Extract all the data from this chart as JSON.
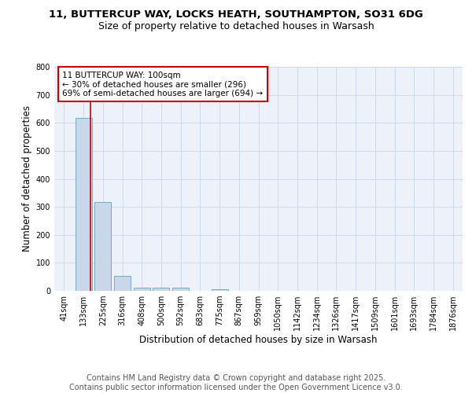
{
  "title": "11, BUTTERCUP WAY, LOCKS HEATH, SOUTHAMPTON, SO31 6DG",
  "subtitle": "Size of property relative to detached houses in Warsash",
  "xlabel": "Distribution of detached houses by size in Warsash",
  "ylabel": "Number of detached properties",
  "categories": [
    "41sqm",
    "133sqm",
    "225sqm",
    "316sqm",
    "408sqm",
    "500sqm",
    "592sqm",
    "683sqm",
    "775sqm",
    "867sqm",
    "959sqm",
    "1050sqm",
    "1142sqm",
    "1234sqm",
    "1326sqm",
    "1417sqm",
    "1509sqm",
    "1601sqm",
    "1693sqm",
    "1784sqm",
    "1876sqm"
  ],
  "values": [
    0,
    618,
    316,
    52,
    11,
    12,
    11,
    0,
    7,
    0,
    0,
    0,
    0,
    0,
    0,
    0,
    0,
    0,
    0,
    0,
    0
  ],
  "bar_color": "#c8d8ea",
  "bar_edge_color": "#7aaabf",
  "grid_color": "#ccdaee",
  "bg_color": "#edf2fa",
  "red_line_x": 1.35,
  "annotation_text": "11 BUTTERCUP WAY: 100sqm\n← 30% of detached houses are smaller (296)\n69% of semi-detached houses are larger (694) →",
  "annotation_box_color": "#cc0000",
  "ylim": [
    0,
    800
  ],
  "yticks": [
    0,
    100,
    200,
    300,
    400,
    500,
    600,
    700,
    800
  ],
  "footer_line1": "Contains HM Land Registry data © Crown copyright and database right 2025.",
  "footer_line2": "Contains public sector information licensed under the Open Government Licence v3.0.",
  "title_fontsize": 9.5,
  "subtitle_fontsize": 9,
  "axis_label_fontsize": 8.5,
  "tick_fontsize": 7,
  "annot_fontsize": 7.5,
  "footer_fontsize": 7
}
